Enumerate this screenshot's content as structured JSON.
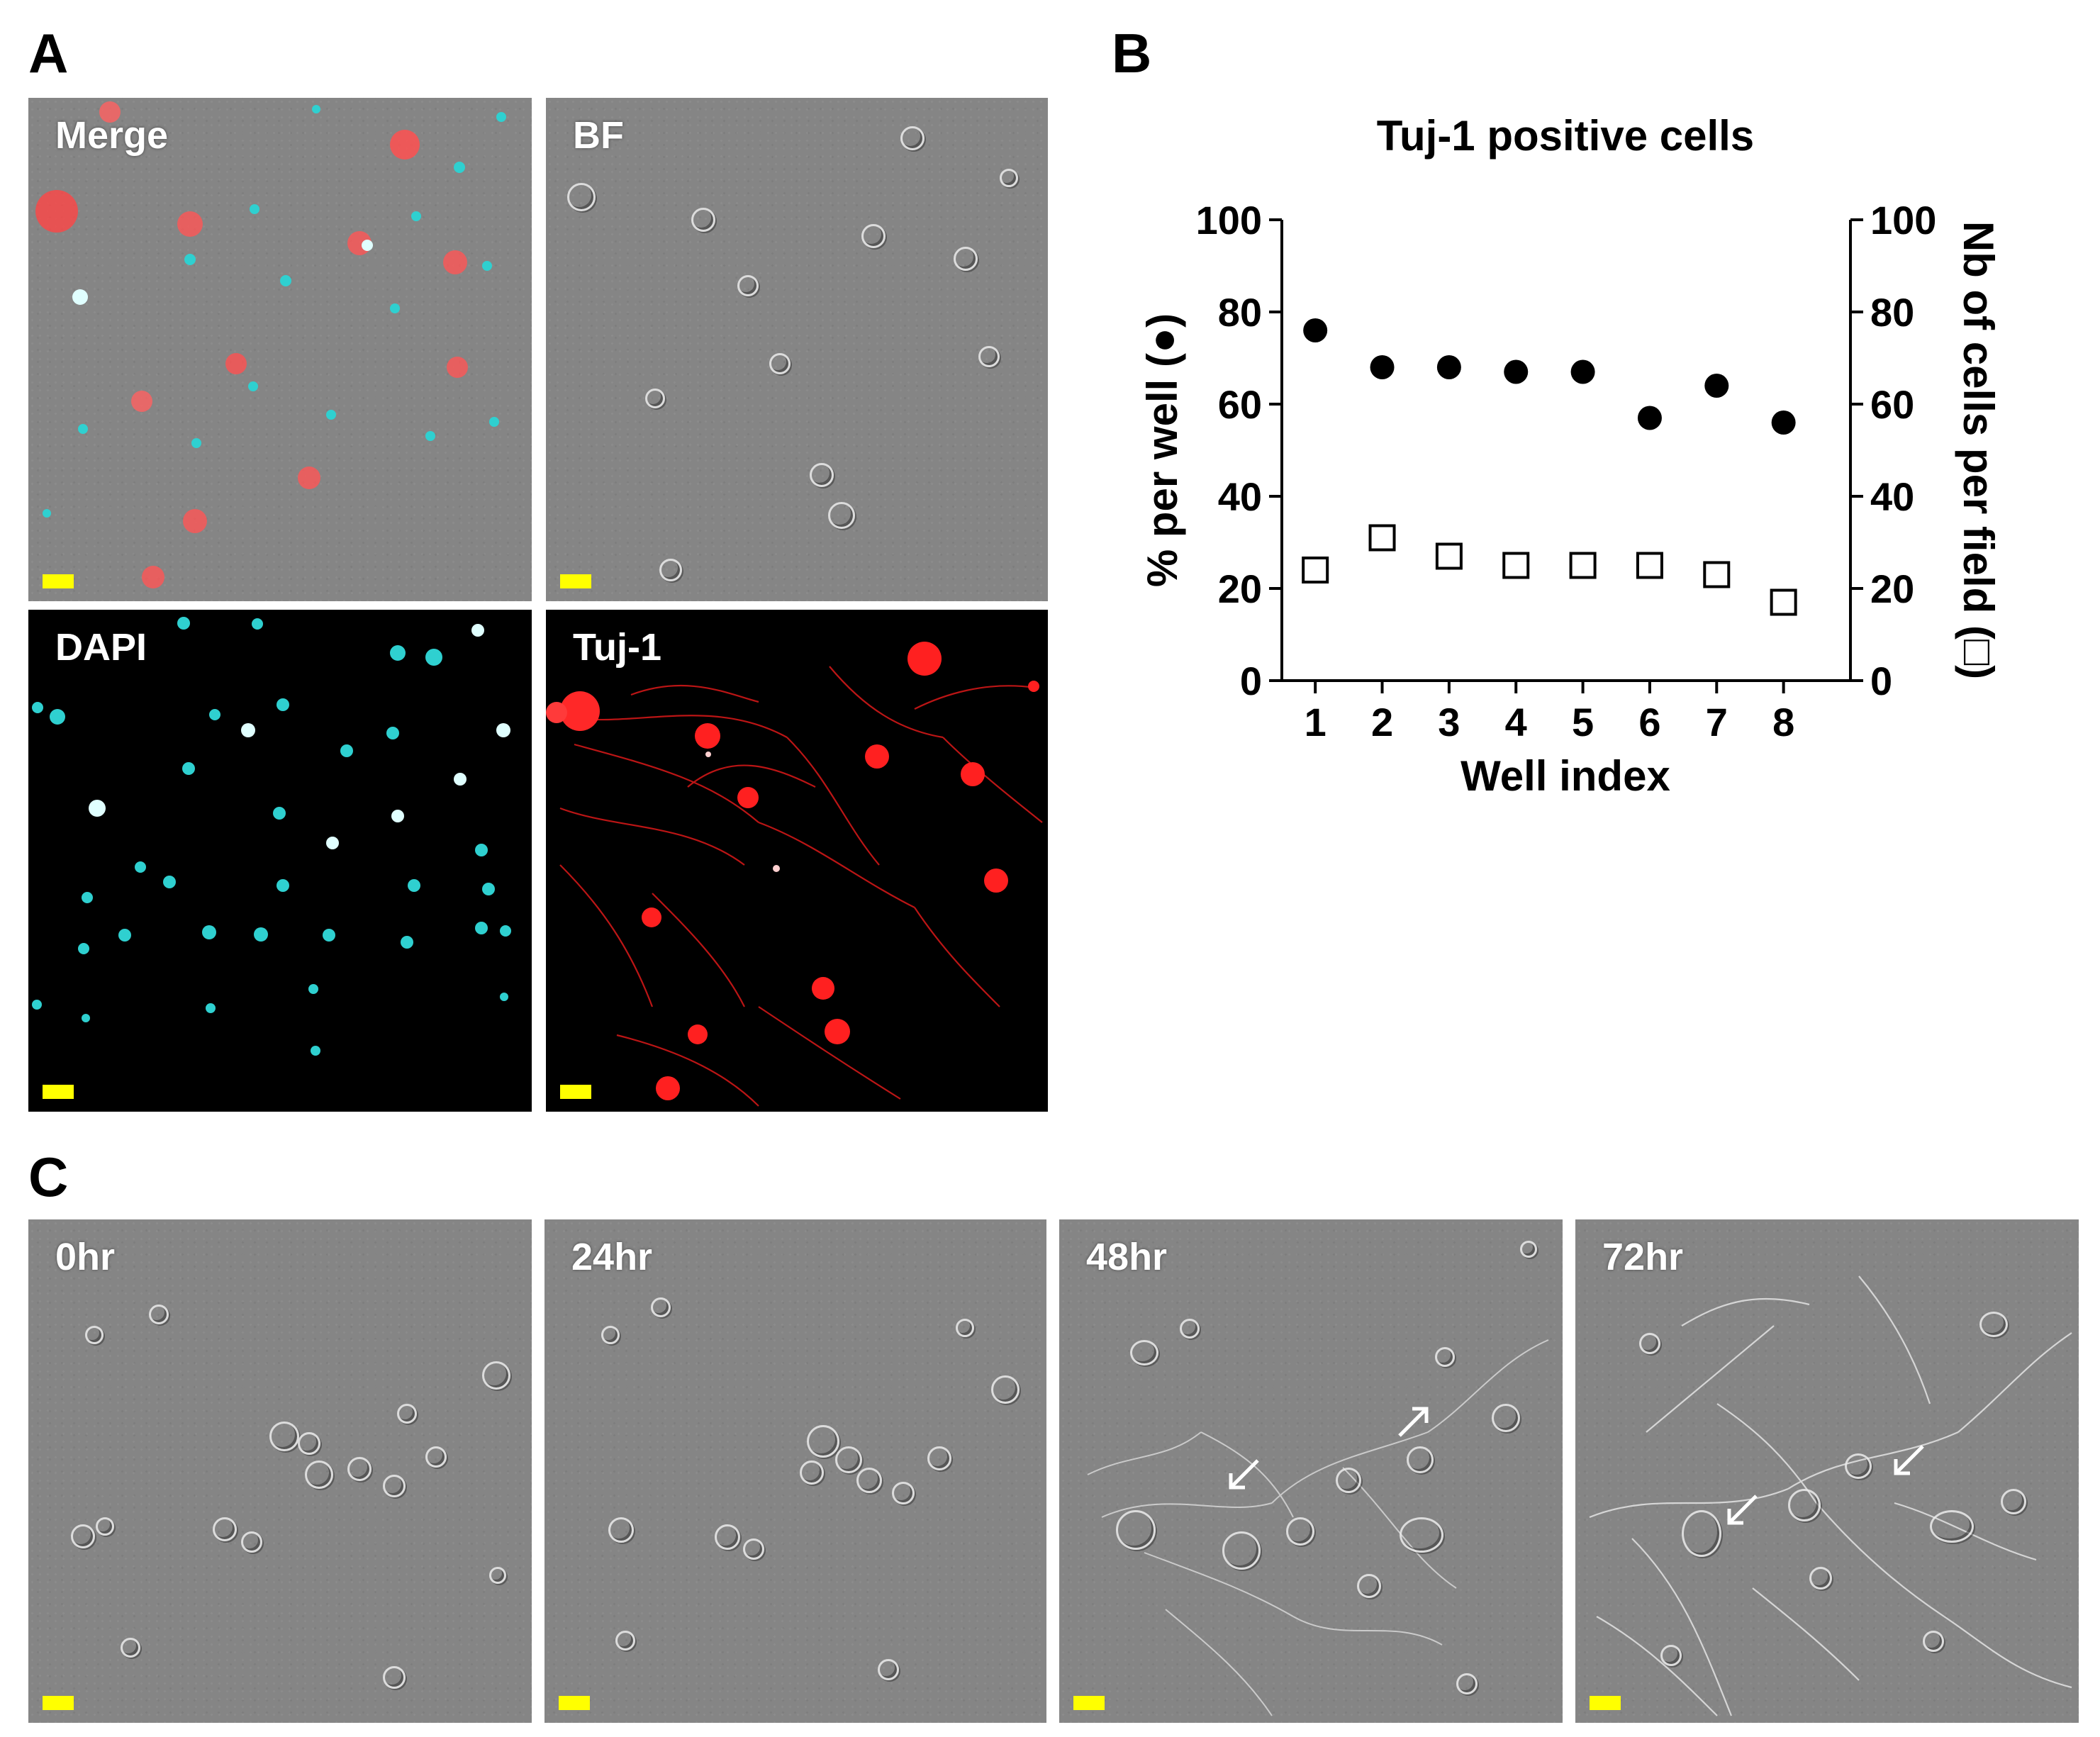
{
  "panel_letters": {
    "a": "A",
    "b": "B",
    "c": "C"
  },
  "panel_a": {
    "images": [
      {
        "label": "Merge"
      },
      {
        "label": "BF"
      },
      {
        "label": "DAPI"
      },
      {
        "label": "Tuj-1"
      }
    ]
  },
  "panel_c": {
    "images": [
      {
        "label": "0hr"
      },
      {
        "label": "24hr"
      },
      {
        "label": "48hr"
      },
      {
        "label": "72hr"
      }
    ]
  },
  "colors": {
    "scalebar": "#ffff00",
    "dapi": "#2fd0d0",
    "tuj1": "#ff2020",
    "bf_background": "#858585"
  },
  "chart_data": {
    "type": "scatter",
    "title": "Tuj-1 positive cells",
    "xlabel": "Well index",
    "ylabel_left": "% per well (●)",
    "ylabel_right": "Nb of cells per field (□)",
    "categories": [
      "1",
      "2",
      "3",
      "4",
      "5",
      "6",
      "7",
      "8"
    ],
    "ylim_left": [
      0,
      100
    ],
    "ylim_right": [
      0,
      100
    ],
    "yticks": [
      "0",
      "20",
      "40",
      "60",
      "80",
      "100"
    ],
    "series": [
      {
        "name": "% per well",
        "marker": "filled-circle",
        "axis": "left",
        "values": [
          76,
          68,
          68,
          67,
          67,
          57,
          64,
          56
        ]
      },
      {
        "name": "Nb of cells per field",
        "marker": "open-square",
        "axis": "right",
        "values": [
          24,
          31,
          27,
          25,
          25,
          25,
          23,
          17
        ]
      }
    ]
  }
}
